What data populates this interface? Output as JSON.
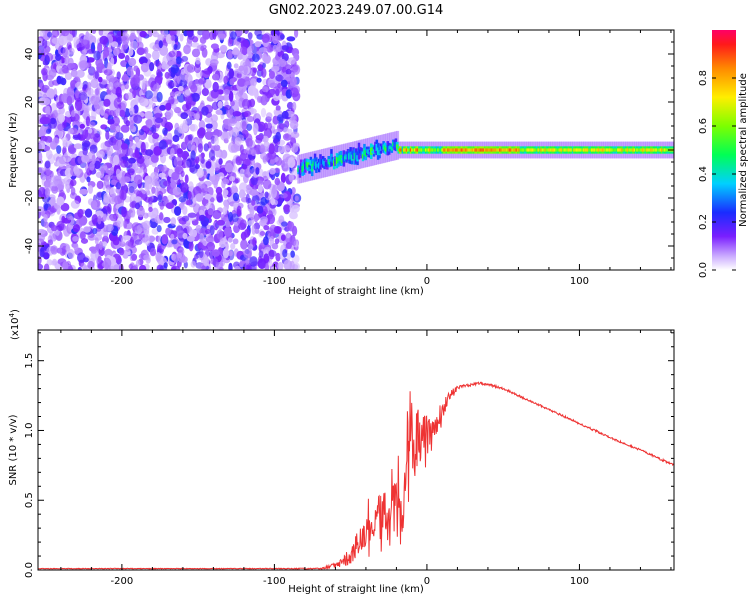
{
  "figure": {
    "title": "GN02.2023.249.07.00.G14"
  },
  "chart_data": [
    {
      "type": "heatmap",
      "title": "GN02.2023.249.07.00.G14",
      "xlabel": "Height of straight line (km)",
      "ylabel": "Frequency (Hz)",
      "xlim": [
        -255,
        162
      ],
      "ylim": [
        -50,
        50
      ],
      "x_ticks": [
        -200,
        -100,
        0,
        100
      ],
      "y_ticks": [
        -40,
        -20,
        0,
        20,
        40
      ],
      "x_tick_labels": [
        "-200",
        "-100",
        "0",
        "100"
      ],
      "y_tick_labels": [
        "-40",
        "-20",
        "0",
        "20",
        "40"
      ],
      "grid": false,
      "colorbar": {
        "label": "Normalized spectral amplitude",
        "range": [
          0,
          1
        ],
        "ticks": [
          0.0,
          0.2,
          0.4,
          0.6,
          0.8
        ],
        "tick_labels": [
          "0.0",
          "0.2",
          "0.4",
          "0.6",
          "0.8"
        ],
        "colormap": "rainbow"
      },
      "regions": [
        {
          "x": [
            -255,
            -85
          ],
          "frequency_spread": [
            -50,
            50
          ],
          "amplitude_level": 0.05,
          "pattern": "scattered noise"
        },
        {
          "x": [
            -85,
            -20
          ],
          "frequency_center_trend": [
            -8,
            4
          ],
          "amplitude_level": 0.3,
          "pattern": "rising chirp"
        },
        {
          "x": [
            -20,
            162
          ],
          "frequency_center": 0,
          "amplitude_level": 0.85,
          "pattern": "narrow steady line"
        }
      ]
    },
    {
      "type": "line",
      "xlabel": "Height of straight line (km)",
      "ylabel": "SNR (10 * v/v)",
      "ylabel_scale": "(x10^4)",
      "scale_prefix": "(x10",
      "scale_exponent": "4",
      "scale_suffix": ")",
      "xlim": [
        -255,
        162
      ],
      "ylim": [
        0,
        1.72
      ],
      "x_ticks": [
        -200,
        -100,
        0,
        100
      ],
      "y_ticks": [
        0.0,
        0.5,
        1.0,
        1.5
      ],
      "x_tick_labels": [
        "-200",
        "-100",
        "0",
        "100"
      ],
      "y_tick_labels": [
        "0.0",
        "0.5",
        "1.0",
        "1.5"
      ],
      "grid": false,
      "series": [
        {
          "color": "#ee3333",
          "x": [
            -255,
            -200,
            -150,
            -100,
            -70,
            -60,
            -50,
            -45,
            -40,
            -35,
            -30,
            -25,
            -20,
            -15,
            -12,
            -10,
            -8,
            -5,
            0,
            5,
            10,
            15,
            20,
            30,
            35,
            40,
            50,
            60,
            80,
            100,
            120,
            140,
            162
          ],
          "y": [
            0.01,
            0.01,
            0.01,
            0.01,
            0.01,
            0.03,
            0.1,
            0.2,
            0.28,
            0.35,
            0.4,
            0.45,
            0.5,
            0.55,
            0.95,
            1.2,
            0.8,
            0.9,
            1.0,
            1.05,
            1.15,
            1.25,
            1.3,
            1.33,
            1.34,
            1.33,
            1.3,
            1.25,
            1.15,
            1.05,
            0.95,
            0.86,
            0.75
          ],
          "noise_amp": [
            0.005,
            0.005,
            0.005,
            0.005,
            0.01,
            0.04,
            0.12,
            0.18,
            0.22,
            0.25,
            0.28,
            0.3,
            0.35,
            0.45,
            0.45,
            0.4,
            0.35,
            0.3,
            0.28,
            0.22,
            0.15,
            0.08,
            0.04,
            0.02,
            0.02,
            0.02,
            0.015,
            0.015,
            0.015,
            0.015,
            0.015,
            0.015,
            0.015
          ]
        }
      ]
    }
  ]
}
